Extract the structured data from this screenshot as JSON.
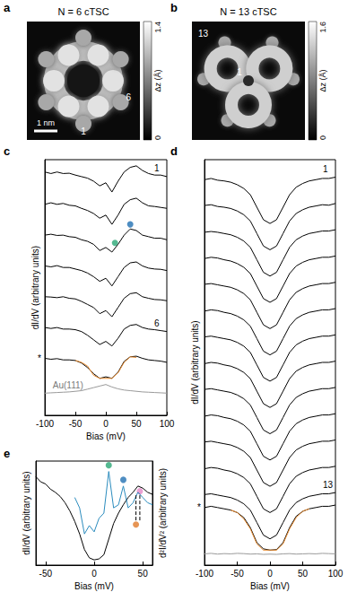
{
  "chart_data": [
    {
      "panel": "a",
      "type": "image",
      "title": "N = 6 cTSC",
      "colorbar": {
        "range": [
          0,
          1.4
        ],
        "ticks": [
          0,
          1.4
        ],
        "label": "Δz (Å)"
      },
      "scale_bar": "1 nm",
      "annotations": [
        "1",
        "6"
      ]
    },
    {
      "panel": "b",
      "type": "image",
      "title": "N = 13 cTSC",
      "colorbar": {
        "range": [
          0,
          1.6
        ],
        "ticks": [
          0,
          1.6
        ],
        "label": "Δz (Å)"
      },
      "annotations": [
        "13",
        "1"
      ]
    },
    {
      "panel": "c",
      "type": "line",
      "x_label": "Bias (mV)",
      "y_label": "dI/dV (arbitrary units)",
      "xlim": [
        -100,
        100
      ],
      "xticks": [
        -100,
        -50,
        0,
        50,
        100
      ],
      "ylim": [
        0,
        8.3
      ],
      "tick_labels": "x",
      "x": [
        -100,
        -90,
        -80,
        -70,
        -60,
        -50,
        -40,
        -30,
        -20,
        -10,
        0,
        10,
        20,
        30,
        40,
        50,
        60,
        70,
        80,
        90,
        100
      ],
      "series": [
        {
          "name": "1",
          "color": "#000000",
          "values": [
            7.9,
            7.85,
            7.9,
            7.85,
            7.86,
            7.8,
            7.75,
            7.7,
            7.6,
            7.45,
            7.55,
            7.25,
            7.6,
            7.9,
            8.05,
            8.1,
            7.95,
            7.85,
            7.8,
            7.8,
            7.75
          ]
        },
        {
          "color": "#000000",
          "values": [
            6.85,
            6.9,
            6.85,
            6.88,
            6.82,
            6.8,
            6.72,
            6.65,
            6.55,
            6.4,
            6.5,
            6.2,
            6.5,
            6.85,
            7.0,
            7.05,
            6.9,
            6.8,
            6.78,
            6.75,
            6.72
          ]
        },
        {
          "color": "#000000",
          "values": [
            5.85,
            5.88,
            5.84,
            5.85,
            5.8,
            5.78,
            5.7,
            5.65,
            5.55,
            5.35,
            5.45,
            5.3,
            5.55,
            5.85,
            6.05,
            6.0,
            5.85,
            5.8,
            5.75,
            5.75,
            5.7
          ]
        },
        {
          "color": "#000000",
          "values": [
            4.85,
            4.82,
            4.86,
            4.8,
            4.8,
            4.75,
            4.7,
            4.62,
            4.5,
            4.35,
            4.45,
            4.2,
            4.5,
            4.8,
            4.95,
            4.98,
            4.85,
            4.78,
            4.75,
            4.74,
            4.7
          ]
        },
        {
          "color": "#000000",
          "values": [
            3.85,
            3.84,
            3.82,
            3.85,
            3.8,
            3.78,
            3.7,
            3.6,
            3.5,
            3.3,
            3.4,
            3.2,
            3.5,
            3.8,
            3.95,
            3.98,
            3.85,
            3.8,
            3.76,
            3.75,
            3.72
          ]
        },
        {
          "name": "6",
          "color": "#000000",
          "values": [
            2.85,
            2.82,
            2.85,
            2.8,
            2.8,
            2.78,
            2.72,
            2.6,
            2.45,
            2.3,
            2.4,
            2.25,
            2.5,
            2.8,
            2.92,
            2.95,
            2.85,
            2.8,
            2.78,
            2.75,
            2.72
          ]
        },
        {
          "name": "*",
          "color": "#000000",
          "values": [
            1.85,
            1.82,
            1.84,
            1.8,
            1.8,
            1.78,
            1.7,
            1.55,
            1.35,
            1.2,
            1.25,
            1.2,
            1.4,
            1.75,
            1.9,
            1.92,
            1.85,
            1.8,
            1.78,
            1.76,
            1.72
          ]
        },
        {
          "color": "#e8892b",
          "values": [
            null,
            null,
            null,
            null,
            null,
            1.78,
            1.72,
            1.6,
            1.3,
            1.2,
            1.2,
            1.2,
            1.38,
            1.72,
            1.9,
            1.88,
            null,
            null,
            null,
            null,
            null
          ]
        },
        {
          "name": "Au(111)",
          "color": "#9a9a9a",
          "values": [
            0.72,
            0.73,
            0.74,
            0.75,
            0.76,
            0.78,
            0.8,
            0.85,
            0.9,
            0.95,
            1.0,
            0.92,
            0.86,
            0.82,
            0.8,
            0.78,
            0.76,
            0.75,
            0.74,
            0.73,
            0.72
          ]
        },
        {
          "type": "scatter",
          "color": "#2aa876",
          "x": [
            15
          ],
          "values": [
            5.6
          ]
        },
        {
          "type": "scatter",
          "color": "#2271b3",
          "x": [
            40
          ],
          "values": [
            6.2
          ]
        }
      ]
    },
    {
      "panel": "d",
      "type": "line",
      "x_label": "Bias (mV)",
      "y_label": "dI/dV (arbitrary units)",
      "xlim": [
        -100,
        100
      ],
      "xticks": [
        -100,
        -50,
        0,
        50,
        100
      ],
      "ylim": [
        0,
        16.2
      ],
      "tick_labels": "x",
      "x": [
        -100,
        -90,
        -80,
        -70,
        -60,
        -50,
        -40,
        -30,
        -20,
        -10,
        0,
        10,
        20,
        30,
        40,
        50,
        60,
        70,
        80,
        90,
        100
      ],
      "series": [
        {
          "name": "1",
          "color": "#000000",
          "values": [
            15.4,
            15.45,
            15.38,
            15.35,
            15.3,
            15.2,
            15.05,
            14.8,
            14.3,
            13.8,
            13.65,
            13.8,
            14.3,
            14.8,
            15.1,
            15.25,
            15.35,
            15.4,
            15.45,
            15.45,
            15.5
          ]
        },
        {
          "color": "#000000",
          "values": [
            14.37,
            14.4,
            14.33,
            14.3,
            14.25,
            14.15,
            14.0,
            13.75,
            13.25,
            12.75,
            12.6,
            12.75,
            13.25,
            13.75,
            14.05,
            14.2,
            14.3,
            14.35,
            14.4,
            14.38,
            14.45
          ]
        },
        {
          "color": "#000000",
          "values": [
            13.3,
            13.33,
            13.3,
            13.25,
            13.2,
            13.1,
            12.95,
            12.7,
            12.2,
            11.7,
            11.55,
            11.7,
            12.2,
            12.7,
            13.0,
            13.15,
            13.25,
            13.3,
            13.35,
            13.35,
            13.4
          ]
        },
        {
          "color": "#000000",
          "values": [
            12.25,
            12.3,
            12.27,
            12.2,
            12.15,
            12.05,
            11.9,
            11.65,
            11.15,
            10.65,
            10.5,
            10.65,
            11.15,
            11.65,
            11.95,
            12.1,
            12.2,
            12.25,
            12.3,
            12.3,
            12.35
          ]
        },
        {
          "color": "#000000",
          "values": [
            11.22,
            11.25,
            11.2,
            11.15,
            11.1,
            11.0,
            10.85,
            10.6,
            10.1,
            9.6,
            9.45,
            9.6,
            10.1,
            10.6,
            10.9,
            11.05,
            11.15,
            11.2,
            11.25,
            11.25,
            11.3
          ]
        },
        {
          "color": "#000000",
          "values": [
            10.15,
            10.2,
            10.17,
            10.1,
            10.05,
            9.95,
            9.8,
            9.55,
            9.05,
            8.55,
            8.4,
            8.55,
            9.05,
            9.55,
            9.85,
            10.0,
            10.1,
            10.15,
            10.2,
            10.2,
            10.25
          ]
        },
        {
          "color": "#000000",
          "values": [
            9.12,
            9.15,
            9.1,
            9.05,
            9.0,
            8.9,
            8.75,
            8.5,
            8.0,
            7.5,
            7.35,
            7.5,
            8.0,
            8.5,
            8.8,
            8.95,
            9.05,
            9.1,
            9.15,
            9.15,
            9.2
          ]
        },
        {
          "color": "#000000",
          "values": [
            8.05,
            8.1,
            8.07,
            8.0,
            7.95,
            7.85,
            7.7,
            7.45,
            6.95,
            6.45,
            6.3,
            6.45,
            6.95,
            7.45,
            7.75,
            7.9,
            8.0,
            8.05,
            8.1,
            8.1,
            8.15
          ]
        },
        {
          "color": "#000000",
          "values": [
            7.02,
            7.05,
            7.0,
            6.95,
            6.9,
            6.8,
            6.65,
            6.4,
            5.9,
            5.4,
            5.25,
            5.4,
            5.9,
            6.4,
            6.7,
            6.85,
            6.95,
            7.0,
            7.05,
            7.05,
            7.1
          ]
        },
        {
          "color": "#000000",
          "values": [
            5.95,
            6.0,
            5.97,
            5.9,
            5.85,
            5.75,
            5.6,
            5.35,
            4.85,
            4.35,
            4.2,
            4.35,
            4.85,
            5.35,
            5.65,
            5.8,
            5.9,
            5.95,
            6.0,
            6.0,
            6.05
          ]
        },
        {
          "color": "#000000",
          "values": [
            4.92,
            4.95,
            4.9,
            4.85,
            4.8,
            4.7,
            4.55,
            4.3,
            3.8,
            3.3,
            3.15,
            3.3,
            3.8,
            4.3,
            4.6,
            4.75,
            4.85,
            4.9,
            4.95,
            4.95,
            5.0
          ]
        },
        {
          "color": "#000000",
          "values": [
            3.85,
            3.9,
            3.87,
            3.8,
            3.75,
            3.65,
            3.5,
            3.25,
            2.75,
            2.25,
            2.1,
            2.25,
            2.75,
            3.25,
            3.55,
            3.7,
            3.8,
            3.85,
            3.9,
            3.9,
            3.95
          ]
        },
        {
          "name": "13",
          "color": "#000000",
          "values": [
            2.82,
            2.85,
            2.8,
            2.75,
            2.7,
            2.6,
            2.45,
            2.2,
            1.7,
            1.2,
            1.05,
            1.2,
            1.7,
            2.2,
            2.5,
            2.65,
            2.75,
            2.8,
            2.85,
            2.85,
            2.9
          ]
        },
        {
          "name": "*",
          "color": "#000000",
          "values": [
            2.3,
            2.35,
            2.3,
            2.25,
            2.2,
            2.1,
            1.9,
            1.5,
            0.9,
            0.65,
            0.6,
            0.62,
            0.9,
            1.5,
            1.95,
            2.15,
            2.25,
            2.3,
            2.35,
            2.35,
            2.4
          ]
        },
        {
          "color": "#e8892b",
          "values": [
            null,
            null,
            null,
            null,
            2.2,
            2.1,
            1.85,
            1.45,
            0.85,
            0.6,
            0.6,
            0.6,
            0.85,
            1.45,
            1.9,
            2.15,
            2.25,
            null,
            null,
            null,
            null
          ]
        },
        {
          "color": "#9a9a9a",
          "values": [
            0.45,
            0.47,
            0.44,
            0.46,
            0.45,
            0.47,
            0.46,
            0.44,
            0.45,
            0.43,
            0.44,
            0.43,
            0.45,
            0.46,
            0.44,
            0.45,
            0.46,
            0.45,
            0.47,
            0.46,
            0.45
          ]
        }
      ]
    },
    {
      "panel": "e",
      "type": "line",
      "x_label": "Bias (mV)",
      "y_label": "dI/dV (arbitrary units)",
      "y2_label": "d²I/dV² (arbitrary units)",
      "xlim": [
        -60,
        60
      ],
      "xticks": [
        -50,
        0,
        50
      ],
      "ylim": [
        0,
        10
      ],
      "y2lim": [
        0,
        10
      ],
      "tick_labels": "x",
      "x": [
        -60,
        -55,
        -50,
        -45,
        -40,
        -35,
        -30,
        -25,
        -20,
        -15,
        -10,
        -5,
        0,
        5,
        10,
        15,
        20,
        25,
        30,
        35,
        40,
        45,
        50,
        55,
        60
      ],
      "series": [
        {
          "color": "#000000",
          "values": [
            8.5,
            8.0,
            7.8,
            7.3,
            7.0,
            6.6,
            6.0,
            5.2,
            4.2,
            3.0,
            1.5,
            0.7,
            0.5,
            0.6,
            1.0,
            2.5,
            4.0,
            5.0,
            5.8,
            6.5,
            7.0,
            7.6,
            7.4,
            7.0,
            6.8
          ]
        },
        {
          "color": "#2b8cbe",
          "axis": "y2",
          "values": [
            null,
            null,
            null,
            null,
            null,
            null,
            null,
            null,
            6.5,
            5.5,
            3.0,
            3.8,
            3.2,
            4.5,
            5.0,
            9.0,
            5.5,
            5.8,
            7.6,
            5.5,
            6.0,
            7.0,
            6.5,
            6.0,
            5.8
          ]
        },
        {
          "color": "#000000",
          "axis": "y2",
          "line_style": "dashed",
          "x": [
            43,
            43
          ],
          "values": [
            4.3,
            6.9
          ]
        },
        {
          "color": "#000000",
          "axis": "y2",
          "line_style": "dashed",
          "x": [
            47,
            47
          ],
          "values": [
            4.3,
            6.9
          ]
        },
        {
          "type": "scatter",
          "color": "#2aa876",
          "axis": "y2",
          "x": [
            15
          ],
          "values": [
            9.6
          ]
        },
        {
          "type": "scatter",
          "color": "#2271b3",
          "axis": "y2",
          "x": [
            30
          ],
          "values": [
            8.2
          ]
        },
        {
          "type": "scatter",
          "color": "#e58ac9",
          "axis": "y2",
          "x": [
            47
          ],
          "values": [
            7.1
          ]
        },
        {
          "type": "scatter",
          "color": "#e07b2a",
          "axis": "y2",
          "x": [
            43
          ],
          "values": [
            3.9
          ]
        }
      ]
    }
  ]
}
